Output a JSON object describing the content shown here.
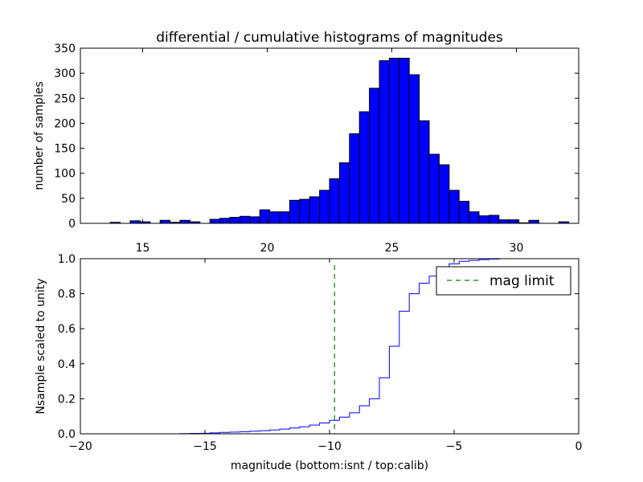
{
  "chart_data": [
    {
      "type": "bar",
      "title": "differential / cumulative histograms of magnitudes",
      "ylabel": "number of samples",
      "xlabel": "",
      "xlim": [
        12.5,
        32.5
      ],
      "ylim": [
        0,
        350
      ],
      "xticks": [
        15,
        20,
        25,
        30
      ],
      "yticks": [
        0,
        50,
        100,
        150,
        200,
        250,
        300,
        350
      ],
      "bar_color": "#0000ff",
      "bin_edges": [
        12.5,
        12.9,
        13.3,
        13.7,
        14.1,
        14.5,
        14.9,
        15.3,
        15.7,
        16.1,
        16.5,
        16.9,
        17.3,
        17.7,
        18.1,
        18.5,
        18.9,
        19.3,
        19.7,
        20.1,
        20.5,
        20.9,
        21.3,
        21.7,
        22.1,
        22.5,
        22.9,
        23.3,
        23.7,
        24.1,
        24.5,
        24.9,
        25.3,
        25.7,
        26.1,
        26.5,
        26.9,
        27.3,
        27.7,
        28.1,
        28.5,
        28.9,
        29.3,
        29.7,
        30.1,
        30.5,
        30.9,
        31.3,
        31.7,
        32.1,
        32.5
      ],
      "values": [
        0,
        0,
        0,
        2,
        0,
        5,
        3,
        0,
        6,
        2,
        6,
        3,
        0,
        8,
        10,
        12,
        14,
        13,
        27,
        23,
        23,
        46,
        48,
        53,
        66,
        89,
        121,
        179,
        223,
        270,
        325,
        330,
        330,
        297,
        205,
        138,
        117,
        66,
        44,
        23,
        15,
        16,
        7,
        7,
        1,
        6,
        0,
        0,
        3,
        0,
        2
      ]
    },
    {
      "type": "line",
      "ylabel": "Nsample scaled to unity",
      "xlabel": "magnitude (bottom:isnt / top:calib)",
      "xlim": [
        -20,
        0
      ],
      "ylim": [
        0,
        1.0
      ],
      "xticks": [
        -20,
        -15,
        -10,
        -5,
        0
      ],
      "yticks": [
        0.0,
        0.2,
        0.4,
        0.6,
        0.8,
        1.0
      ],
      "series": [
        {
          "color": "#0000ff",
          "step": true,
          "x": [
            -20,
            -16,
            -15.6,
            -15.2,
            -14.8,
            -14.4,
            -14,
            -13.6,
            -13.2,
            -12.8,
            -12.4,
            -12,
            -11.6,
            -11.2,
            -10.8,
            -10.4,
            -10,
            -9.6,
            -9.2,
            -8.8,
            -8.4,
            -8,
            -7.6,
            -7.2,
            -6.8,
            -6.4,
            -6,
            -5.6,
            -5.2,
            -4.8,
            -4.4,
            -4,
            -3.6,
            -3.2,
            0
          ],
          "y": [
            0,
            0.001,
            0.002,
            0.003,
            0.005,
            0.008,
            0.01,
            0.012,
            0.015,
            0.018,
            0.022,
            0.027,
            0.033,
            0.04,
            0.05,
            0.062,
            0.077,
            0.095,
            0.12,
            0.16,
            0.2,
            0.32,
            0.5,
            0.7,
            0.8,
            0.86,
            0.9,
            0.94,
            0.97,
            0.985,
            0.99,
            0.995,
            0.998,
            1.0,
            1.0
          ]
        },
        {
          "name": "mag limit",
          "color": "#007f00",
          "dashed": true,
          "vline": -9.8
        }
      ],
      "legend": "top-right"
    }
  ]
}
